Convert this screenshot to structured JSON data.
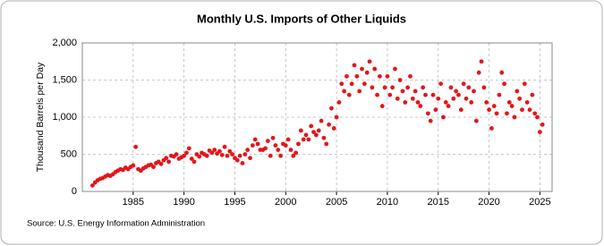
{
  "chart_data": {
    "type": "scatter",
    "title": "Monthly U.S. Imports of Other Liquids",
    "y_label": "Thousand Barrels per Day",
    "source": "Source: U.S. Energy Information Administration",
    "color": "#e3161b",
    "grid": true,
    "xlim": [
      1980,
      2026.2
    ],
    "ylim": [
      0,
      2000
    ],
    "xticks": [
      1985,
      1990,
      1995,
      2000,
      2005,
      2010,
      2015,
      2020,
      2025
    ],
    "yticks": [
      0,
      500,
      {
        "value": 1000,
        "label": "1,000"
      },
      {
        "value": 1500,
        "label": "1,500"
      },
      {
        "value": 2000,
        "label": "2,000"
      }
    ],
    "x": [
      1981,
      1981.25,
      1981.5,
      1981.75,
      1982,
      1982.25,
      1982.5,
      1982.75,
      1983,
      1983.25,
      1983.5,
      1983.75,
      1984,
      1984.25,
      1984.5,
      1984.75,
      1985,
      1985.25,
      1985.5,
      1985.75,
      1986,
      1986.25,
      1986.5,
      1986.75,
      1987,
      1987.25,
      1987.5,
      1987.75,
      1988,
      1988.25,
      1988.5,
      1988.75,
      1989,
      1989.25,
      1989.5,
      1989.75,
      1990,
      1990.25,
      1990.5,
      1990.75,
      1991,
      1991.25,
      1991.5,
      1991.75,
      1992,
      1992.25,
      1992.5,
      1992.75,
      1993,
      1993.25,
      1993.5,
      1993.75,
      1994,
      1994.25,
      1994.5,
      1994.75,
      1995,
      1995.25,
      1995.5,
      1995.75,
      1996,
      1996.25,
      1996.5,
      1996.75,
      1997,
      1997.25,
      1997.5,
      1997.75,
      1998,
      1998.25,
      1998.5,
      1998.75,
      1999,
      1999.25,
      1999.5,
      1999.75,
      2000,
      2000.25,
      2000.5,
      2000.75,
      2001,
      2001.25,
      2001.5,
      2001.75,
      2002,
      2002.25,
      2002.5,
      2002.75,
      2003,
      2003.25,
      2003.5,
      2003.75,
      2004,
      2004.25,
      2004.5,
      2004.75,
      2005,
      2005.25,
      2005.5,
      2005.75,
      2006,
      2006.25,
      2006.5,
      2006.75,
      2007,
      2007.25,
      2007.5,
      2007.75,
      2008,
      2008.25,
      2008.5,
      2008.75,
      2009,
      2009.25,
      2009.5,
      2009.75,
      2010,
      2010.25,
      2010.5,
      2010.75,
      2011,
      2011.25,
      2011.5,
      2011.75,
      2012,
      2012.25,
      2012.5,
      2012.75,
      2013,
      2013.25,
      2013.5,
      2013.75,
      2014,
      2014.25,
      2014.5,
      2014.75,
      2015,
      2015.25,
      2015.5,
      2015.75,
      2016,
      2016.25,
      2016.5,
      2016.75,
      2017,
      2017.25,
      2017.5,
      2017.75,
      2018,
      2018.25,
      2018.5,
      2018.75,
      2019,
      2019.25,
      2019.5,
      2019.75,
      2020,
      2020.25,
      2020.5,
      2020.75,
      2021,
      2021.25,
      2021.5,
      2021.75,
      2022,
      2022.25,
      2022.5,
      2022.75,
      2023,
      2023.25,
      2023.5,
      2023.75,
      2024,
      2024.25,
      2024.5,
      2024.75,
      2025,
      2025.25
    ],
    "values": [
      80,
      120,
      150,
      170,
      180,
      200,
      220,
      210,
      230,
      260,
      280,
      300,
      290,
      320,
      300,
      330,
      350,
      600,
      300,
      280,
      310,
      330,
      350,
      360,
      330,
      380,
      400,
      370,
      420,
      450,
      400,
      480,
      470,
      500,
      440,
      460,
      480,
      520,
      580,
      440,
      400,
      500,
      470,
      520,
      500,
      480,
      550,
      520,
      560,
      510,
      540,
      490,
      600,
      480,
      540,
      500,
      450,
      420,
      480,
      380,
      500,
      560,
      450,
      620,
      700,
      640,
      560,
      560,
      580,
      680,
      480,
      720,
      620,
      560,
      480,
      640,
      620,
      700,
      560,
      480,
      520,
      640,
      820,
      700,
      760,
      700,
      880,
      800,
      760,
      820,
      950,
      720,
      640,
      900,
      1120,
      850,
      1000,
      1200,
      1450,
      1350,
      1550,
      1300,
      1450,
      1700,
      1550,
      1350,
      1650,
      1450,
      1600,
      1750,
      1400,
      1650,
      1300,
      1550,
      1150,
      1400,
      1550,
      1300,
      1400,
      1650,
      1250,
      1500,
      1350,
      1200,
      1400,
      1550,
      1250,
      1350,
      1200,
      1150,
      1400,
      1300,
      1050,
      950,
      1300,
      1100,
      1250,
      1450,
      1000,
      1200,
      1150,
      1400,
      1250,
      1350,
      1300,
      1100,
      1450,
      1250,
      1400,
      1200,
      1350,
      950,
      1600,
      1750,
      1400,
      1200,
      1100,
      850,
      1150,
      1050,
      1300,
      1600,
      1450,
      1050,
      1200,
      1150,
      1000,
      1350,
      1250,
      1100,
      1450,
      1200,
      1100,
      1300,
      1050,
      1000,
      800,
      900
    ]
  }
}
